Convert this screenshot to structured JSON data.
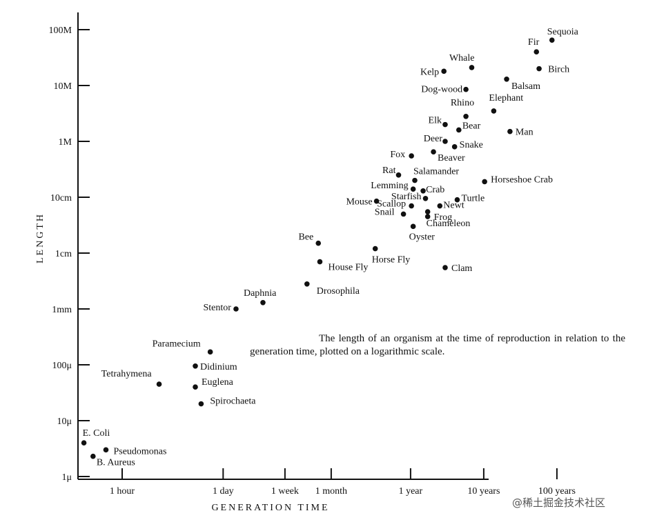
{
  "chart_data": {
    "type": "scatter",
    "title": "",
    "xlabel": "GENERATION TIME",
    "ylabel": "LENGTH",
    "x_scale": "log",
    "y_scale": "log",
    "grid": false,
    "x_unit": "hours",
    "y_unit": "micrometres",
    "x_ticks": [
      {
        "label": "1 hour",
        "value": 1
      },
      {
        "label": "1 day",
        "value": 24
      },
      {
        "label": "1 week",
        "value": 168
      },
      {
        "label": "1 month",
        "value": 720
      },
      {
        "label": "1 year",
        "value": 8760
      },
      {
        "label": "10 years",
        "value": 87600
      },
      {
        "label": "100 years",
        "value": 876000
      }
    ],
    "y_ticks": [
      {
        "label": "1μ",
        "value": 1
      },
      {
        "label": "10μ",
        "value": 10
      },
      {
        "label": "100μ",
        "value": 100
      },
      {
        "label": "1mm",
        "value": 1000
      },
      {
        "label": "1cm",
        "value": 10000
      },
      {
        "label": "10cm",
        "value": 100000
      },
      {
        "label": "1M",
        "value": 1000000
      },
      {
        "label": "10M",
        "value": 10000000
      },
      {
        "label": "100M",
        "value": 100000000
      }
    ],
    "points": [
      {
        "label": "E. Coli",
        "x": 0.3,
        "y": 4
      },
      {
        "label": "Pseudomonas",
        "x": 0.6,
        "y": 3
      },
      {
        "label": "B. Aureus",
        "x": 0.4,
        "y": 2.3
      },
      {
        "label": "Tetrahymena",
        "x": 3.2,
        "y": 45
      },
      {
        "label": "Paramecium",
        "x": 16,
        "y": 170
      },
      {
        "label": "Didinium",
        "x": 10,
        "y": 95
      },
      {
        "label": "Euglena",
        "x": 10,
        "y": 40
      },
      {
        "label": "Spirochaeta",
        "x": 12,
        "y": 20
      },
      {
        "label": "Stentor",
        "x": 36,
        "y": 1000
      },
      {
        "label": "Daphnia",
        "x": 84,
        "y": 1300
      },
      {
        "label": "Drosophila",
        "x": 336,
        "y": 2800
      },
      {
        "label": "House Fly",
        "x": 504,
        "y": 7000
      },
      {
        "label": "Bee",
        "x": 480,
        "y": 15000
      },
      {
        "label": "Horse Fly",
        "x": 2880,
        "y": 12000
      },
      {
        "label": "Clam",
        "x": 26000,
        "y": 5500
      },
      {
        "label": "Oyster",
        "x": 9500,
        "y": 30000
      },
      {
        "label": "Snail",
        "x": 7000,
        "y": 50000
      },
      {
        "label": "Scallop",
        "x": 9000,
        "y": 70000
      },
      {
        "label": "Mouse",
        "x": 3000,
        "y": 85000
      },
      {
        "label": "Lemming",
        "x": 9500,
        "y": 140000
      },
      {
        "label": "Starfish",
        "x": 14000,
        "y": 95000
      },
      {
        "label": "Frog",
        "x": 15000,
        "y": 45000
      },
      {
        "label": "Newt",
        "x": 22000,
        "y": 70000
      },
      {
        "label": "Chameleon",
        "x": 15000,
        "y": 55000
      },
      {
        "label": "Turtle",
        "x": 38000,
        "y": 90000
      },
      {
        "label": "Crab",
        "x": 13000,
        "y": 130000
      },
      {
        "label": "Salamander",
        "x": 10000,
        "y": 200000
      },
      {
        "label": "Rat",
        "x": 6000,
        "y": 250000
      },
      {
        "label": "Horseshoe Crab",
        "x": 90000,
        "y": 190000
      },
      {
        "label": "Fox",
        "x": 9000,
        "y": 550000
      },
      {
        "label": "Beaver",
        "x": 18000,
        "y": 650000
      },
      {
        "label": "Deer",
        "x": 26000,
        "y": 1000000
      },
      {
        "label": "Snake",
        "x": 35000,
        "y": 800000
      },
      {
        "label": "Bear",
        "x": 40000,
        "y": 1600000
      },
      {
        "label": "Elk",
        "x": 26000,
        "y": 2000000
      },
      {
        "label": "Man",
        "x": 200000,
        "y": 1500000
      },
      {
        "label": "Rhino",
        "x": 50000,
        "y": 2800000
      },
      {
        "label": "Elephant",
        "x": 120000,
        "y": 3500000
      },
      {
        "label": "Dog-wood",
        "x": 50000,
        "y": 8500000
      },
      {
        "label": "Balsam",
        "x": 180000,
        "y": 13000000
      },
      {
        "label": "Kelp",
        "x": 25000,
        "y": 18000000
      },
      {
        "label": "Whale",
        "x": 60000,
        "y": 21000000
      },
      {
        "label": "Birch",
        "x": 500000,
        "y": 20000000
      },
      {
        "label": "Fir",
        "x": 460000,
        "y": 40000000
      },
      {
        "label": "Sequoia",
        "x": 750000,
        "y": 65000000
      }
    ]
  },
  "caption": "The length of an organism at the time of reproduction in relation to the generation time, plotted on a logarithmic scale.",
  "watermark": "@稀土掘金技术社区"
}
